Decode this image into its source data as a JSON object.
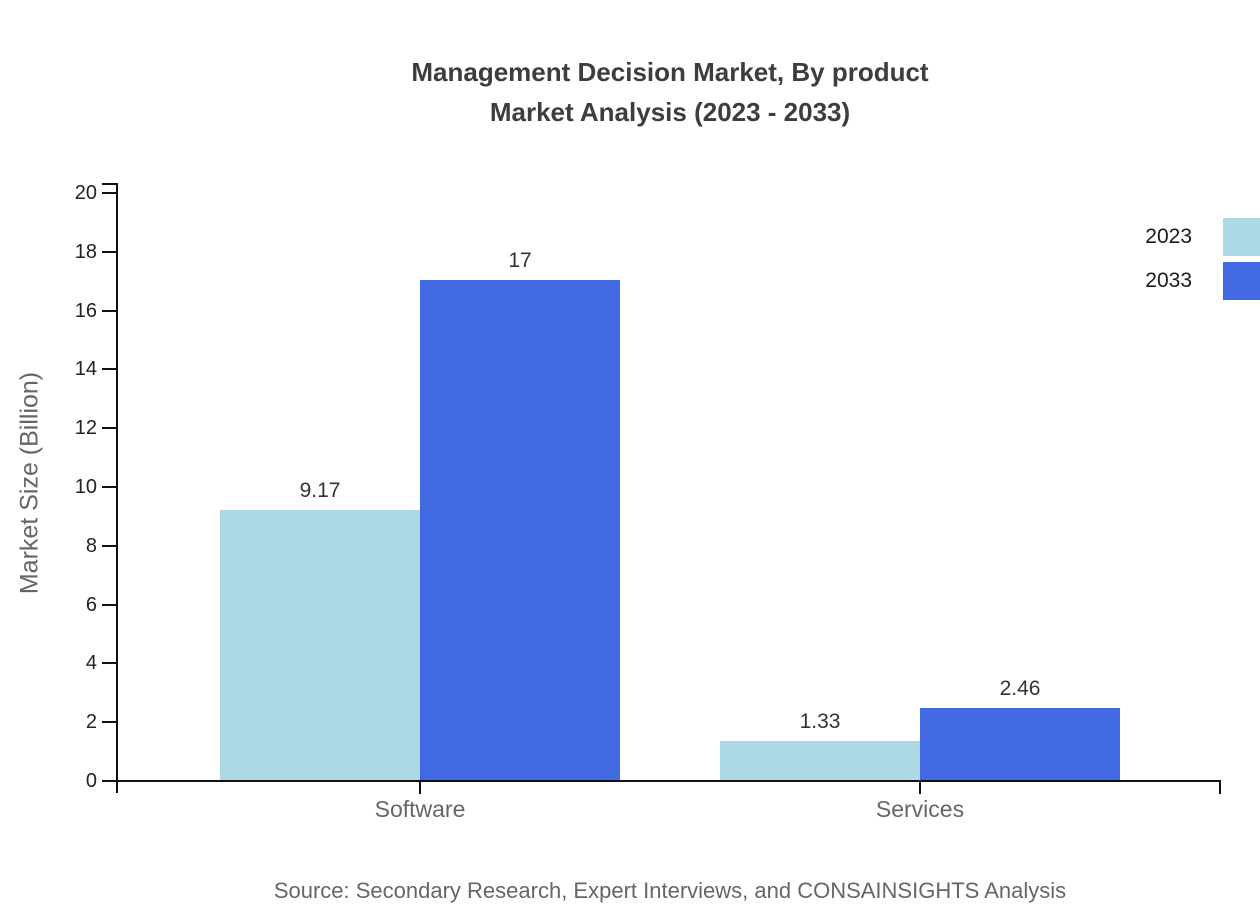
{
  "title": {
    "line1": "Management Decision Market, By product",
    "line2": "Market Analysis (2023 - 2033)"
  },
  "source": "Source: Secondary Research, Expert Interviews, and CONSAINSIGHTS Analysis",
  "chart_data": {
    "type": "bar",
    "title": "Management Decision Market, By product Market Analysis (2023 - 2033)",
    "xlabel": "",
    "ylabel": "Market Size (Billion)",
    "categories": [
      "Software",
      "Services"
    ],
    "series": [
      {
        "name": "2023",
        "color": "#ADD8E6",
        "values": [
          9.17,
          1.33
        ],
        "value_labels": [
          "9.17",
          "1.33"
        ]
      },
      {
        "name": "2033",
        "color": "#4169E1",
        "values": [
          17,
          2.46
        ],
        "value_labels": [
          "17",
          "2.46"
        ]
      }
    ],
    "ylim": [
      0,
      20
    ],
    "ytick_step": 2,
    "grid": false,
    "legend_position": "top-right"
  },
  "colors": {
    "series_2023": "#ADD8E6",
    "series_2033": "#4169E1",
    "axis": "#111111",
    "tick_label": "#222222",
    "value_label": "#333333",
    "muted_text": "#666666",
    "title_text": "#3d3d3d"
  }
}
